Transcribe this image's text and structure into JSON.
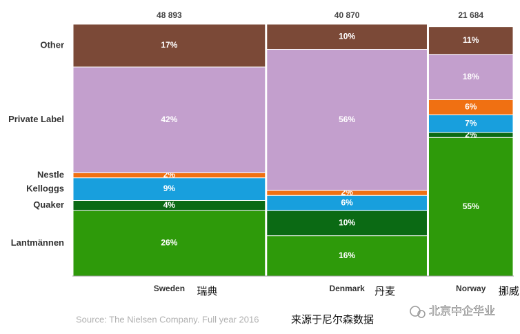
{
  "chart_data": {
    "type": "mekko",
    "categories": [
      "Sweden",
      "Denmark",
      "Norway"
    ],
    "category_notes": [
      "瑞典",
      "丹麦",
      "挪威"
    ],
    "widths": [
      48893,
      40870,
      21684
    ],
    "width_labels": [
      "48 893",
      "40 870",
      "21 684"
    ],
    "ylim": [
      0,
      100
    ],
    "series": [
      {
        "name": "Lantmännen",
        "color": "#2e9a0a",
        "values": [
          26,
          16,
          55
        ],
        "value_labels": [
          "26%",
          "16%",
          "55%"
        ]
      },
      {
        "name": "Quaker",
        "color": "#0b6a14",
        "values": [
          4,
          10,
          2
        ],
        "value_labels": [
          "4%",
          "10%",
          "2%"
        ]
      },
      {
        "name": "Kelloggs",
        "color": "#189fdd",
        "values": [
          9,
          6,
          7
        ],
        "value_labels": [
          "9%",
          "6%",
          "7%"
        ]
      },
      {
        "name": "Nestle",
        "color": "#f07012",
        "values": [
          2,
          2,
          6
        ],
        "value_labels": [
          "2%",
          "2%",
          "6%"
        ]
      },
      {
        "name": "Private Label",
        "color": "#c39fcd",
        "values": [
          42,
          56,
          18
        ],
        "value_labels": [
          "42%",
          "56%",
          "18%"
        ]
      },
      {
        "name": "Other",
        "color": "#7b4937",
        "values": [
          17,
          10,
          11
        ],
        "value_labels": [
          "17%",
          "10%",
          "11%"
        ]
      }
    ],
    "source": "Source: The Nielsen Company. Full year 2016",
    "source_note": "来源于尼尔森数据",
    "watermark": "北京中企华业"
  }
}
